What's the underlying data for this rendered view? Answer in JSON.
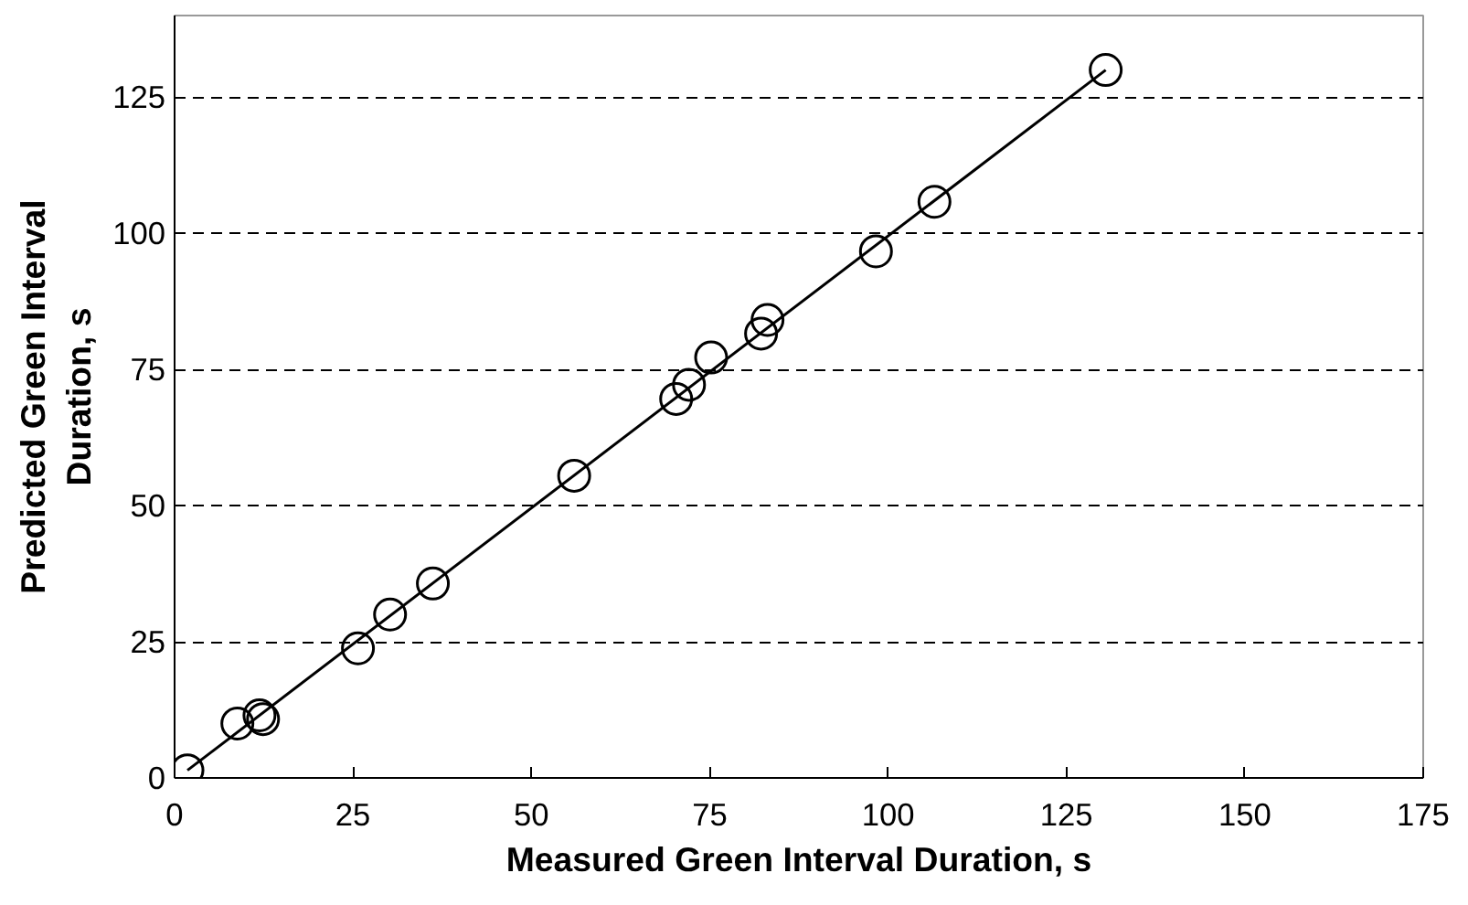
{
  "chart_data": {
    "type": "scatter",
    "xlabel": "Measured Green Interval Duration, s",
    "ylabel": "Predicted Green Interval\nDuration, s",
    "xlim": [
      0,
      175
    ],
    "xticks": [
      0,
      25,
      50,
      75,
      100,
      125,
      150,
      175
    ],
    "ylim": [
      0,
      140
    ],
    "yticks": [
      0,
      25,
      50,
      75,
      100,
      125
    ],
    "grid": "y",
    "marker": "circle",
    "series": [
      {
        "color": "#000000",
        "x": [
          1.8,
          8.8,
          11.9,
          12.4,
          25.7,
          30.2,
          36.2,
          56,
          70.3,
          72.1,
          75.2,
          82.2,
          83.1,
          98.3,
          106.5,
          130.5
        ],
        "values": [
          1.4,
          10,
          11.5,
          10.8,
          23.8,
          30,
          35.7,
          55.5,
          69.6,
          72.2,
          77.2,
          81.6,
          84.1,
          96.7,
          105.8,
          130
        ]
      },
      {
        "type": "line",
        "color": "#000000",
        "line_style": "solid",
        "marker": "none",
        "x": [
          1.8,
          130.5
        ],
        "values": [
          1.4,
          130
        ]
      }
    ]
  }
}
